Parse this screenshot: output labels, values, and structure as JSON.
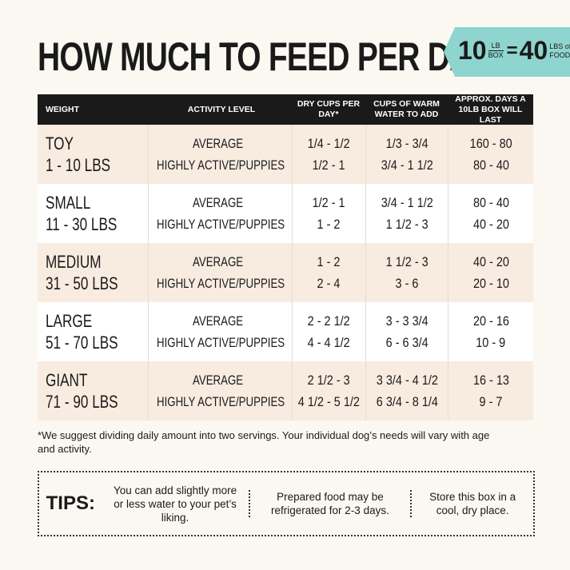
{
  "header": {
    "title": "HOW MUCH TO FEED PER DAY",
    "badge": {
      "box_amount": "10",
      "box_unit_top": "LB",
      "box_unit_bottom": "BOX",
      "equals": "=",
      "food_amount": "40",
      "food_unit_top": "LBS of",
      "food_unit_bottom": "FOOD!"
    }
  },
  "table": {
    "headers": [
      "WEIGHT",
      "ACTIVITY LEVEL",
      "DRY CUPS PER DAY*",
      "CUPS OF WARM WATER TO ADD",
      "APPROX. DAYS A 10LB BOX WILL LAST"
    ],
    "rows": [
      {
        "size": "TOY",
        "range": "1 - 10 LBS",
        "activity": [
          "AVERAGE",
          "HIGHLY ACTIVE/PUPPIES"
        ],
        "dry": [
          "1/4 - 1/2",
          "1/2 - 1"
        ],
        "water": [
          "1/3 - 3/4",
          "3/4 - 1 1/2"
        ],
        "days": [
          "160 - 80",
          "80 - 40"
        ]
      },
      {
        "size": "SMALL",
        "range": "11 - 30 LBS",
        "activity": [
          "AVERAGE",
          "HIGHLY ACTIVE/PUPPIES"
        ],
        "dry": [
          "1/2 - 1",
          "1 - 2"
        ],
        "water": [
          "3/4 - 1 1/2",
          "1 1/2 - 3"
        ],
        "days": [
          "80 - 40",
          "40 - 20"
        ]
      },
      {
        "size": "MEDIUM",
        "range": "31 - 50 LBS",
        "activity": [
          "AVERAGE",
          "HIGHLY ACTIVE/PUPPIES"
        ],
        "dry": [
          "1 - 2",
          "2 - 4"
        ],
        "water": [
          "1 1/2 - 3",
          "3 - 6"
        ],
        "days": [
          "40 - 20",
          "20 - 10"
        ]
      },
      {
        "size": "LARGE",
        "range": "51 - 70 LBS",
        "activity": [
          "AVERAGE",
          "HIGHLY ACTIVE/PUPPIES"
        ],
        "dry": [
          "2 - 2 1/2",
          "4 - 4 1/2"
        ],
        "water": [
          "3 - 3 3/4",
          "6 - 6 3/4"
        ],
        "days": [
          "20 - 16",
          "10 - 9"
        ]
      },
      {
        "size": "GIANT",
        "range": "71 - 90 LBS",
        "activity": [
          "AVERAGE",
          "HIGHLY ACTIVE/PUPPIES"
        ],
        "dry": [
          "2 1/2 - 3",
          "4 1/2 - 5 1/2"
        ],
        "water": [
          "3 3/4 - 4 1/2",
          "6 3/4 - 8 1/4"
        ],
        "days": [
          "16 - 13",
          "9 - 7"
        ]
      }
    ]
  },
  "footnote": "*We suggest dividing daily amount into two servings. Your individual dog’s needs will vary with age and activity.",
  "tips": {
    "label": "TIPS:",
    "items": [
      "You can add slightly more or less water to your pet’s liking.",
      "Prepared food may be refrigerated for 2-3 days.",
      "Store this box in a cool, dry place."
    ]
  }
}
